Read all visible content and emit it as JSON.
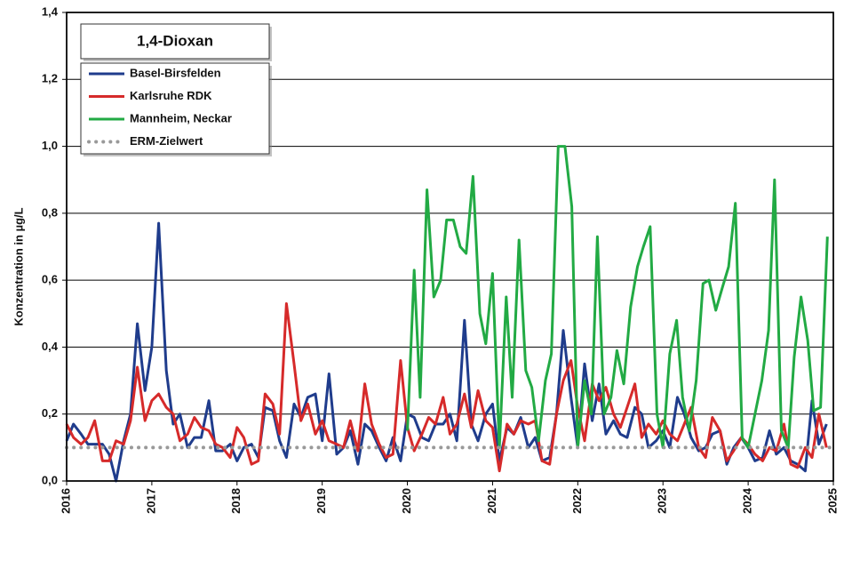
{
  "chart_data": {
    "type": "line",
    "title": "1,4-Dioxan",
    "ylabel": "Konzentration in µg/L",
    "xlim": [
      2016,
      2025
    ],
    "xticks": [
      2016,
      2017,
      2018,
      2019,
      2020,
      2021,
      2022,
      2023,
      2024,
      2025
    ],
    "ylim": [
      0,
      1.4
    ],
    "yticks": [
      {
        "value": 0,
        "label": "0,0"
      },
      {
        "value": 0.2,
        "label": "0,2"
      },
      {
        "value": 0.4,
        "label": "0,4"
      },
      {
        "value": 0.6,
        "label": "0,6"
      },
      {
        "value": 0.8,
        "label": "0,8"
      },
      {
        "value": 1.0,
        "label": "1,0"
      },
      {
        "value": 1.2,
        "label": "1,2"
      },
      {
        "value": 1.4,
        "label": "1,4"
      }
    ],
    "grid": true,
    "legend": "upper left",
    "series": [
      {
        "name": "Basel-Birsfelden",
        "color": "#1f3c8c",
        "style": "solid",
        "x": [
          2016.0,
          2016.08,
          2016.17,
          2016.25,
          2016.33,
          2016.42,
          2016.5,
          2016.58,
          2016.67,
          2016.75,
          2016.83,
          2016.92,
          2017.0,
          2017.08,
          2017.17,
          2017.25,
          2017.33,
          2017.42,
          2017.5,
          2017.58,
          2017.67,
          2017.75,
          2017.83,
          2017.92,
          2018.0,
          2018.08,
          2018.17,
          2018.25,
          2018.33,
          2018.42,
          2018.5,
          2018.58,
          2018.67,
          2018.75,
          2018.83,
          2018.92,
          2019.0,
          2019.08,
          2019.17,
          2019.25,
          2019.33,
          2019.42,
          2019.5,
          2019.58,
          2019.67,
          2019.75,
          2019.83,
          2019.92,
          2020.0,
          2020.08,
          2020.17,
          2020.25,
          2020.33,
          2020.42,
          2020.5,
          2020.58,
          2020.67,
          2020.75,
          2020.83,
          2020.92,
          2021.0,
          2021.08,
          2021.17,
          2021.25,
          2021.33,
          2021.42,
          2021.5,
          2021.58,
          2021.67,
          2021.75,
          2021.83,
          2021.92,
          2022.0,
          2022.08,
          2022.17,
          2022.25,
          2022.33,
          2022.42,
          2022.5,
          2022.58,
          2022.67,
          2022.75,
          2022.83,
          2022.92,
          2023.0,
          2023.08,
          2023.17,
          2023.25,
          2023.33,
          2023.42,
          2023.5,
          2023.58,
          2023.67,
          2023.75,
          2023.83,
          2023.92,
          2024.0,
          2024.08,
          2024.17,
          2024.25,
          2024.33,
          2024.42,
          2024.5,
          2024.58,
          2024.67,
          2024.75,
          2024.83,
          2024.92
        ],
        "values": [
          0.12,
          0.17,
          0.14,
          0.11,
          0.11,
          0.11,
          0.08,
          0.0,
          0.12,
          0.2,
          0.47,
          0.27,
          0.4,
          0.77,
          0.33,
          0.17,
          0.2,
          0.1,
          0.13,
          0.13,
          0.24,
          0.09,
          0.09,
          0.11,
          0.06,
          0.1,
          0.11,
          0.07,
          0.22,
          0.21,
          0.12,
          0.07,
          0.23,
          0.19,
          0.25,
          0.26,
          0.12,
          0.32,
          0.08,
          0.1,
          0.15,
          0.05,
          0.17,
          0.15,
          0.1,
          0.06,
          0.13,
          0.06,
          0.2,
          0.19,
          0.13,
          0.12,
          0.17,
          0.17,
          0.2,
          0.12,
          0.48,
          0.17,
          0.12,
          0.2,
          0.23,
          0.06,
          0.16,
          0.14,
          0.19,
          0.1,
          0.13,
          0.06,
          0.07,
          0.2,
          0.45,
          0.25,
          0.1,
          0.35,
          0.18,
          0.29,
          0.14,
          0.18,
          0.14,
          0.13,
          0.22,
          0.2,
          0.1,
          0.12,
          0.15,
          0.1,
          0.25,
          0.2,
          0.13,
          0.09,
          0.1,
          0.14,
          0.15,
          0.05,
          0.1,
          0.13,
          0.1,
          0.06,
          0.07,
          0.15,
          0.08,
          0.1,
          0.06,
          0.05,
          0.03,
          0.24,
          0.11,
          0.17
        ]
      },
      {
        "name": "Karlsruhe RDK",
        "color": "#d62a2a",
        "style": "solid",
        "x": [
          2016.0,
          2016.08,
          2016.17,
          2016.25,
          2016.33,
          2016.42,
          2016.5,
          2016.58,
          2016.67,
          2016.75,
          2016.83,
          2016.92,
          2017.0,
          2017.08,
          2017.17,
          2017.25,
          2017.33,
          2017.42,
          2017.5,
          2017.58,
          2017.67,
          2017.75,
          2017.83,
          2017.92,
          2018.0,
          2018.08,
          2018.17,
          2018.25,
          2018.33,
          2018.42,
          2018.5,
          2018.58,
          2018.67,
          2018.75,
          2018.83,
          2018.92,
          2019.0,
          2019.08,
          2019.17,
          2019.25,
          2019.33,
          2019.42,
          2019.5,
          2019.58,
          2019.67,
          2019.75,
          2019.83,
          2019.92,
          2020.0,
          2020.08,
          2020.17,
          2020.25,
          2020.33,
          2020.42,
          2020.5,
          2020.58,
          2020.67,
          2020.75,
          2020.83,
          2020.92,
          2021.0,
          2021.08,
          2021.17,
          2021.25,
          2021.33,
          2021.42,
          2021.5,
          2021.58,
          2021.67,
          2021.75,
          2021.83,
          2021.92,
          2022.0,
          2022.08,
          2022.17,
          2022.25,
          2022.33,
          2022.42,
          2022.5,
          2022.58,
          2022.67,
          2022.75,
          2022.83,
          2022.92,
          2023.0,
          2023.08,
          2023.17,
          2023.25,
          2023.33,
          2023.42,
          2023.5,
          2023.58,
          2023.67,
          2023.75,
          2023.83,
          2023.92,
          2024.0,
          2024.08,
          2024.17,
          2024.25,
          2024.33,
          2024.42,
          2024.5,
          2024.58,
          2024.67,
          2024.75,
          2024.83,
          2024.92
        ],
        "values": [
          0.17,
          0.13,
          0.11,
          0.13,
          0.18,
          0.06,
          0.06,
          0.12,
          0.11,
          0.18,
          0.34,
          0.18,
          0.24,
          0.26,
          0.22,
          0.2,
          0.12,
          0.14,
          0.19,
          0.16,
          0.15,
          0.11,
          0.1,
          0.07,
          0.16,
          0.13,
          0.05,
          0.06,
          0.26,
          0.23,
          0.14,
          0.53,
          0.35,
          0.18,
          0.23,
          0.14,
          0.18,
          0.12,
          0.11,
          0.1,
          0.18,
          0.09,
          0.29,
          0.17,
          0.11,
          0.07,
          0.08,
          0.36,
          0.16,
          0.09,
          0.14,
          0.19,
          0.17,
          0.25,
          0.14,
          0.17,
          0.26,
          0.16,
          0.27,
          0.18,
          0.16,
          0.03,
          0.17,
          0.14,
          0.18,
          0.17,
          0.18,
          0.06,
          0.05,
          0.2,
          0.3,
          0.36,
          0.22,
          0.12,
          0.29,
          0.24,
          0.28,
          0.2,
          0.16,
          0.22,
          0.29,
          0.13,
          0.17,
          0.14,
          0.18,
          0.14,
          0.12,
          0.17,
          0.22,
          0.1,
          0.07,
          0.19,
          0.15,
          0.06,
          0.09,
          0.13,
          0.11,
          0.08,
          0.06,
          0.1,
          0.09,
          0.17,
          0.05,
          0.04,
          0.1,
          0.07,
          0.2,
          0.1
        ]
      },
      {
        "name": "Mannheim, Neckar",
        "color": "#22aa44",
        "style": "solid",
        "x": [
          2020.0,
          2020.08,
          2020.15,
          2020.23,
          2020.31,
          2020.39,
          2020.46,
          2020.54,
          2020.62,
          2020.69,
          2020.77,
          2020.85,
          2020.92,
          2021.0,
          2021.08,
          2021.16,
          2021.23,
          2021.31,
          2021.39,
          2021.46,
          2021.54,
          2021.62,
          2021.69,
          2021.77,
          2021.85,
          2021.93,
          2022.0,
          2022.08,
          2022.16,
          2022.23,
          2022.31,
          2022.39,
          2022.46,
          2022.54,
          2022.62,
          2022.7,
          2022.77,
          2022.85,
          2022.93,
          2023.0,
          2023.08,
          2023.16,
          2023.23,
          2023.31,
          2023.39,
          2023.47,
          2023.54,
          2023.62,
          2023.7,
          2023.77,
          2023.85,
          2023.93,
          2024.0,
          2024.08,
          2024.16,
          2024.24,
          2024.31,
          2024.39,
          2024.47,
          2024.54,
          2024.62,
          2024.7,
          2024.77,
          2024.85,
          2024.93
        ],
        "values": [
          0.15,
          0.63,
          0.25,
          0.87,
          0.55,
          0.6,
          0.78,
          0.78,
          0.7,
          0.68,
          0.91,
          0.5,
          0.41,
          0.62,
          0.1,
          0.55,
          0.25,
          0.72,
          0.33,
          0.28,
          0.12,
          0.3,
          0.38,
          1.0,
          1.0,
          0.82,
          0.1,
          0.3,
          0.2,
          0.73,
          0.2,
          0.25,
          0.39,
          0.29,
          0.52,
          0.64,
          0.7,
          0.76,
          0.2,
          0.1,
          0.38,
          0.48,
          0.25,
          0.15,
          0.3,
          0.59,
          0.6,
          0.51,
          0.58,
          0.64,
          0.83,
          0.13,
          0.1,
          0.2,
          0.3,
          0.45,
          0.9,
          0.15,
          0.1,
          0.37,
          0.55,
          0.42,
          0.21,
          0.22,
          0.73
        ]
      },
      {
        "name": "ERM-Zielwert",
        "color": "#999999",
        "style": "dotted",
        "x": [
          2016,
          2025
        ],
        "values": [
          0.1,
          0.1
        ]
      }
    ]
  }
}
